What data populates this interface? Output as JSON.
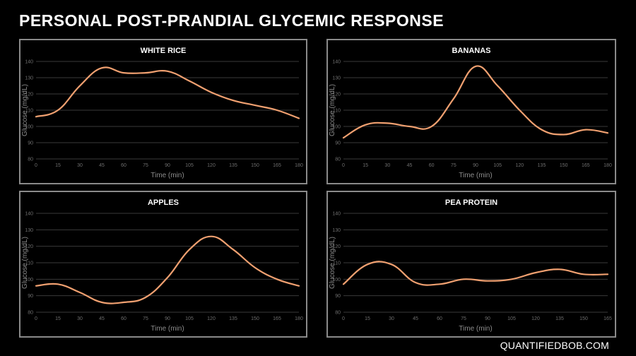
{
  "page": {
    "title": "PERSONAL POST-PRANDIAL GLYCEMIC RESPONSE",
    "footer": "QUANTIFIEDBOB.COM",
    "line_color": "#f0a070",
    "background": "#000000"
  },
  "chart_data": [
    {
      "type": "line",
      "title": "WHITE RICE",
      "xlabel": "Time (min)",
      "ylabel": "Glucose (mg/dL)",
      "xlim": [
        0,
        180
      ],
      "ylim": [
        80,
        140
      ],
      "xticks": [
        0,
        15,
        30,
        45,
        60,
        75,
        90,
        105,
        120,
        135,
        150,
        165,
        180
      ],
      "yticks": [
        80,
        90,
        100,
        110,
        120,
        130,
        140
      ],
      "grid": true,
      "series": [
        {
          "x": [
            0,
            15,
            30,
            45,
            60,
            75,
            90,
            105,
            120,
            135,
            150,
            165,
            180
          ],
          "y": [
            106,
            110,
            125,
            136,
            133,
            133,
            134,
            128,
            121,
            116,
            113,
            110,
            105
          ]
        }
      ]
    },
    {
      "type": "line",
      "title": "BANANAS",
      "xlabel": "Time (min)",
      "ylabel": "Glucose (mg/dL)",
      "xlim": [
        0,
        180
      ],
      "ylim": [
        80,
        140
      ],
      "xticks": [
        0,
        15,
        30,
        45,
        60,
        75,
        90,
        105,
        120,
        135,
        150,
        165,
        180
      ],
      "yticks": [
        80,
        90,
        100,
        110,
        120,
        130,
        140
      ],
      "grid": true,
      "series": [
        {
          "x": [
            0,
            15,
            30,
            45,
            60,
            75,
            90,
            105,
            120,
            135,
            150,
            165,
            180
          ],
          "y": [
            93,
            101,
            102,
            100,
            100,
            117,
            137,
            125,
            110,
            98,
            95,
            98,
            96
          ]
        }
      ]
    },
    {
      "type": "line",
      "title": "APPLES",
      "xlabel": "Time (min)",
      "ylabel": "Glucose (mg/dL)",
      "xlim": [
        0,
        180
      ],
      "ylim": [
        80,
        140
      ],
      "xticks": [
        0,
        15,
        30,
        45,
        60,
        75,
        90,
        105,
        120,
        135,
        150,
        165,
        180
      ],
      "yticks": [
        80,
        90,
        100,
        110,
        120,
        130,
        140
      ],
      "grid": true,
      "series": [
        {
          "x": [
            0,
            15,
            30,
            45,
            60,
            75,
            90,
            105,
            120,
            135,
            150,
            165,
            180
          ],
          "y": [
            96,
            97,
            92,
            86,
            86,
            89,
            101,
            118,
            126,
            118,
            107,
            100,
            96
          ]
        }
      ]
    },
    {
      "type": "line",
      "title": "PEA PROTEIN",
      "xlabel": "Time (min)",
      "ylabel": "Glucose (mg/dL)",
      "xlim": [
        0,
        165
      ],
      "ylim": [
        80,
        140
      ],
      "xticks": [
        0,
        15,
        30,
        45,
        60,
        75,
        90,
        105,
        120,
        135,
        150,
        165
      ],
      "yticks": [
        80,
        90,
        100,
        110,
        120,
        130,
        140
      ],
      "grid": true,
      "series": [
        {
          "x": [
            0,
            15,
            30,
            45,
            60,
            75,
            90,
            105,
            120,
            135,
            150,
            165
          ],
          "y": [
            97,
            109,
            109,
            98,
            97,
            100,
            99,
            100,
            104,
            106,
            103,
            103
          ]
        }
      ]
    }
  ]
}
